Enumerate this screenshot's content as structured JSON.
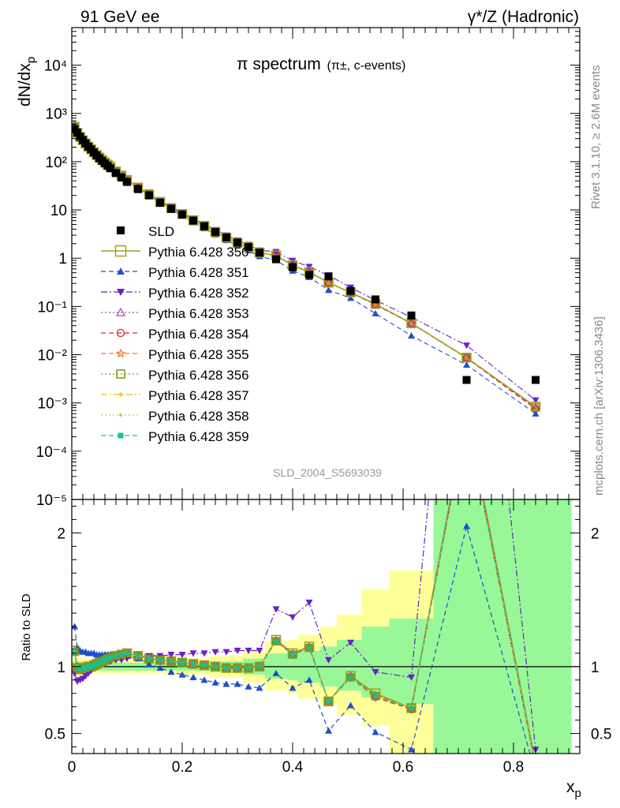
{
  "header": {
    "left": "91 GeV ee",
    "right": "γ*/Z (Hadronic)"
  },
  "side_text": {
    "rivet": "Rivet 3.1.10, ≥ 2.6M events",
    "mcplots": "mcplots.cern.ch [arXiv:1306.3436]"
  },
  "chart_data": [
    {
      "type": "scatter",
      "panel": "main",
      "title": "π spectrum",
      "subtitle": "(π±, c-events)",
      "analysis": "SLD_2004_S5693039",
      "ylabel": "dN/dx",
      "ylabel_sub": "p",
      "yscale": "log",
      "xlim": [
        0,
        0.92
      ],
      "ylim": [
        1e-05,
        60000
      ],
      "ytick_labels": [
        "10⁻⁵",
        "10⁻⁴",
        "10⁻³",
        "10⁻²",
        "10⁻¹",
        "1",
        "10",
        "10²",
        "10³",
        "10⁴"
      ],
      "data_series": {
        "name": "SLD",
        "color": "#000000",
        "x": [
          0.005,
          0.01,
          0.015,
          0.02,
          0.025,
          0.03,
          0.035,
          0.04,
          0.045,
          0.05,
          0.055,
          0.06,
          0.065,
          0.07,
          0.08,
          0.09,
          0.1,
          0.12,
          0.14,
          0.16,
          0.18,
          0.2,
          0.22,
          0.24,
          0.26,
          0.28,
          0.3,
          0.32,
          0.34,
          0.37,
          0.4,
          0.43,
          0.465,
          0.505,
          0.55,
          0.615,
          0.715,
          0.84
        ],
        "y": [
          470,
          400,
          330,
          280,
          240,
          205,
          180,
          155,
          135,
          118,
          104,
          92,
          82,
          73,
          58,
          47,
          38,
          27,
          20,
          14,
          10.5,
          8,
          6,
          4.6,
          3.5,
          2.7,
          2.1,
          1.7,
          1.3,
          0.95,
          0.65,
          0.45,
          0.42,
          0.21,
          0.14,
          0.065,
          0.003,
          0.003
        ]
      },
      "ratio_series": [
        {
          "name": "Pythia 6.428 350",
          "color": "#a0a020",
          "dash": "",
          "marker": "square-open"
        },
        {
          "name": "Pythia 6.428 351",
          "color": "#1f4fc8",
          "dash": "6,4",
          "marker": "triangle-up"
        },
        {
          "name": "Pythia 6.428 352",
          "color": "#6a20c8",
          "dash": "8,3,2,3",
          "marker": "triangle-down"
        },
        {
          "name": "Pythia 6.428 353",
          "color": "#c03ca8",
          "dash": "2,3",
          "marker": "triangle-open"
        },
        {
          "name": "Pythia 6.428 354",
          "color": "#e02020",
          "dash": "6,4",
          "marker": "circle-open"
        },
        {
          "name": "Pythia 6.428 355",
          "color": "#f07820",
          "dash": "6,4",
          "marker": "star"
        },
        {
          "name": "Pythia 6.428 356",
          "color": "#7a9a10",
          "dash": "2,3",
          "marker": "square-open"
        },
        {
          "name": "Pythia 6.428 357",
          "color": "#e8c020",
          "dash": "8,3,2,3",
          "marker": "cross"
        },
        {
          "name": "Pythia 6.428 358",
          "color": "#c8d028",
          "dash": "2,3",
          "marker": "dot"
        },
        {
          "name": "Pythia 6.428 359",
          "color": "#18c090",
          "dash": "6,4",
          "marker": "square-filled"
        }
      ]
    },
    {
      "type": "line",
      "panel": "ratio",
      "ylabel": "Ratio to SLD",
      "xlabel": "x",
      "xlabel_sub": "p",
      "xlim": [
        0,
        0.92
      ],
      "ylim": [
        0.35,
        2.25
      ],
      "xticks": [
        0,
        0.2,
        0.4,
        0.6,
        0.8
      ],
      "xtick_labels": [
        "0",
        "0.2",
        "0.4",
        "0.6",
        "0.8"
      ],
      "yticks": [
        0.5,
        1,
        2
      ],
      "ytick_labels": [
        "0.5",
        "1",
        "2"
      ],
      "bands": [
        {
          "x0": 0.0,
          "x1": 0.03,
          "yellow": [
            0.93,
            1.07
          ],
          "green": [
            0.96,
            1.04
          ]
        },
        {
          "x0": 0.03,
          "x1": 0.17,
          "yellow": [
            0.95,
            1.05
          ],
          "green": [
            0.97,
            1.03
          ]
        },
        {
          "x0": 0.17,
          "x1": 0.25,
          "yellow": [
            0.94,
            1.06
          ],
          "green": [
            0.97,
            1.03
          ]
        },
        {
          "x0": 0.25,
          "x1": 0.31,
          "yellow": [
            0.92,
            1.08
          ],
          "green": [
            0.96,
            1.04
          ]
        },
        {
          "x0": 0.31,
          "x1": 0.35,
          "yellow": [
            0.88,
            1.12
          ],
          "green": [
            0.94,
            1.06
          ]
        },
        {
          "x0": 0.35,
          "x1": 0.39,
          "yellow": [
            0.82,
            1.19
          ],
          "green": [
            0.91,
            1.1
          ]
        },
        {
          "x0": 0.39,
          "x1": 0.41,
          "yellow": [
            0.8,
            1.2
          ],
          "green": [
            0.9,
            1.11
          ]
        },
        {
          "x0": 0.41,
          "x1": 0.45,
          "yellow": [
            0.76,
            1.24
          ],
          "green": [
            0.88,
            1.12
          ]
        },
        {
          "x0": 0.45,
          "x1": 0.48,
          "yellow": [
            0.72,
            1.3
          ],
          "green": [
            0.85,
            1.15
          ]
        },
        {
          "x0": 0.48,
          "x1": 0.525,
          "yellow": [
            0.64,
            1.39
          ],
          "green": [
            0.82,
            1.2
          ]
        },
        {
          "x0": 0.525,
          "x1": 0.575,
          "yellow": [
            0.56,
            1.58
          ],
          "green": [
            0.77,
            1.3
          ]
        },
        {
          "x0": 0.575,
          "x1": 0.655,
          "yellow": [
            0.35,
            1.72
          ],
          "green": [
            0.72,
            1.36
          ]
        },
        {
          "x0": 0.655,
          "x1": 0.905,
          "yellow": [
            0.35,
            2.25
          ],
          "green": [
            0.35,
            2.25
          ]
        }
      ],
      "x": [
        0.005,
        0.01,
        0.015,
        0.02,
        0.025,
        0.03,
        0.035,
        0.04,
        0.045,
        0.05,
        0.055,
        0.06,
        0.065,
        0.07,
        0.08,
        0.09,
        0.1,
        0.12,
        0.14,
        0.16,
        0.18,
        0.2,
        0.22,
        0.24,
        0.26,
        0.28,
        0.3,
        0.32,
        0.34,
        0.37,
        0.4,
        0.43,
        0.465,
        0.505,
        0.55,
        0.615,
        0.715,
        0.84
      ],
      "ratios": {
        "Pythia 6.428 350": [
          1.12,
          0.99,
          0.98,
          0.99,
          0.99,
          1.0,
          1.0,
          1.01,
          1.02,
          1.03,
          1.04,
          1.05,
          1.06,
          1.07,
          1.08,
          1.09,
          1.1,
          1.08,
          1.06,
          1.05,
          1.04,
          1.03,
          1.02,
          1.01,
          1.0,
          0.99,
          0.99,
          0.99,
          1.0,
          1.2,
          1.1,
          1.15,
          0.74,
          0.93,
          0.8,
          0.69,
          2.9,
          0.28
        ],
        "Pythia 6.428 351": [
          1.3,
          1.14,
          1.12,
          1.11,
          1.11,
          1.1,
          1.1,
          1.1,
          1.09,
          1.09,
          1.09,
          1.09,
          1.09,
          1.09,
          1.09,
          1.09,
          1.08,
          1.06,
          1.02,
          0.99,
          0.96,
          0.94,
          0.92,
          0.9,
          0.88,
          0.87,
          0.87,
          0.85,
          0.84,
          0.95,
          0.84,
          0.9,
          0.52,
          0.71,
          0.51,
          0.38,
          2.05,
          0.2
        ],
        "Pythia 6.428 352": [
          0.95,
          0.89,
          0.9,
          0.91,
          0.93,
          0.95,
          0.97,
          0.99,
          1.0,
          1.01,
          1.02,
          1.03,
          1.04,
          1.04,
          1.05,
          1.05,
          1.06,
          1.07,
          1.08,
          1.08,
          1.09,
          1.09,
          1.1,
          1.1,
          1.11,
          1.11,
          1.12,
          1.12,
          1.12,
          1.43,
          1.37,
          1.48,
          1.05,
          1.18,
          0.96,
          0.92,
          5.2,
          0.38
        ],
        "Pythia 6.428 353": [
          1.12,
          1.0,
          0.98,
          0.99,
          0.99,
          1.0,
          1.0,
          1.01,
          1.02,
          1.03,
          1.04,
          1.05,
          1.06,
          1.07,
          1.08,
          1.09,
          1.1,
          1.08,
          1.06,
          1.05,
          1.04,
          1.03,
          1.02,
          1.01,
          1.0,
          0.99,
          0.99,
          0.99,
          1.0,
          1.2,
          1.1,
          1.15,
          0.74,
          0.93,
          0.78,
          0.69,
          2.9,
          0.26
        ],
        "Pythia 6.428 354": [
          1.11,
          0.99,
          0.98,
          0.99,
          0.99,
          1.0,
          1.0,
          1.01,
          1.02,
          1.03,
          1.04,
          1.05,
          1.06,
          1.07,
          1.08,
          1.09,
          1.1,
          1.08,
          1.06,
          1.05,
          1.04,
          1.03,
          1.02,
          1.01,
          1.0,
          0.99,
          0.99,
          0.99,
          1.0,
          1.19,
          1.09,
          1.14,
          0.74,
          0.92,
          0.77,
          0.68,
          2.85,
          0.25
        ],
        "Pythia 6.428 355": [
          1.11,
          0.99,
          0.98,
          0.99,
          0.99,
          1.0,
          1.0,
          1.01,
          1.02,
          1.03,
          1.04,
          1.05,
          1.06,
          1.07,
          1.08,
          1.09,
          1.1,
          1.08,
          1.06,
          1.05,
          1.04,
          1.03,
          1.02,
          1.01,
          1.0,
          0.99,
          0.99,
          0.99,
          1.0,
          1.19,
          1.09,
          1.14,
          0.74,
          0.92,
          0.79,
          0.69,
          2.85,
          0.26
        ],
        "Pythia 6.428 356": [
          1.11,
          0.99,
          0.98,
          0.99,
          0.99,
          1.0,
          1.0,
          1.01,
          1.02,
          1.03,
          1.04,
          1.05,
          1.06,
          1.07,
          1.08,
          1.09,
          1.1,
          1.08,
          1.06,
          1.05,
          1.04,
          1.03,
          1.02,
          1.01,
          1.0,
          0.99,
          0.99,
          0.99,
          1.0,
          1.19,
          1.09,
          1.14,
          0.74,
          0.92,
          0.78,
          0.69,
          2.85,
          0.27
        ],
        "Pythia 6.428 357": [
          1.11,
          0.99,
          0.98,
          0.99,
          0.99,
          1.0,
          1.0,
          1.01,
          1.02,
          1.03,
          1.04,
          1.05,
          1.06,
          1.07,
          1.08,
          1.09,
          1.1,
          1.08,
          1.06,
          1.05,
          1.04,
          1.03,
          1.02,
          1.01,
          1.0,
          0.99,
          0.99,
          0.99,
          1.0,
          1.19,
          1.09,
          1.14,
          0.74,
          0.92,
          0.78,
          0.69,
          2.85,
          0.27
        ],
        "Pythia 6.428 358": [
          1.11,
          0.99,
          0.98,
          0.99,
          0.99,
          1.0,
          1.0,
          1.01,
          1.02,
          1.03,
          1.04,
          1.05,
          1.06,
          1.07,
          1.08,
          1.09,
          1.1,
          1.08,
          1.06,
          1.05,
          1.04,
          1.03,
          1.02,
          1.01,
          1.0,
          0.99,
          0.99,
          0.99,
          1.0,
          1.19,
          1.09,
          1.14,
          0.74,
          0.92,
          0.78,
          0.69,
          2.85,
          0.27
        ],
        "Pythia 6.428 359": [
          1.11,
          0.99,
          0.98,
          0.99,
          0.99,
          1.0,
          1.0,
          1.01,
          1.02,
          1.03,
          1.04,
          1.05,
          1.06,
          1.07,
          1.08,
          1.09,
          1.1,
          1.08,
          1.06,
          1.05,
          1.04,
          1.03,
          1.02,
          1.01,
          1.0,
          0.99,
          0.99,
          0.99,
          1.0,
          1.19,
          1.09,
          1.14,
          0.74,
          0.92,
          0.78,
          0.69,
          2.85,
          0.27
        ]
      }
    }
  ]
}
